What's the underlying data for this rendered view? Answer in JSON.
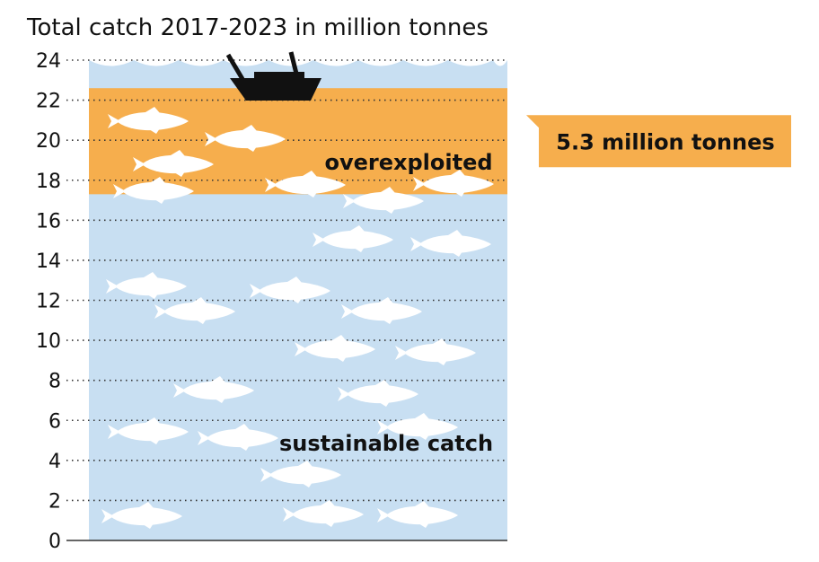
{
  "chart_data": {
    "type": "bar",
    "title": "Total catch 2017-2023 in million tonnes",
    "xlabel": "",
    "ylabel": "",
    "ylim": [
      0,
      24
    ],
    "yticks": [
      0,
      2,
      4,
      6,
      8,
      10,
      12,
      14,
      16,
      18,
      20,
      22,
      24
    ],
    "grid": true,
    "stacked": true,
    "categories": [
      ""
    ],
    "segments": [
      {
        "name": "sustainable catch",
        "value": 17.3,
        "color": "#c8dff2"
      },
      {
        "name": "overexploited",
        "value": 5.3,
        "color": "#f6ae4d"
      }
    ],
    "total": 22.6,
    "annotations": [
      {
        "text": "5.3 million tonnes",
        "refers_to": "overexploited",
        "color": "#f6ae4d"
      }
    ],
    "icons": [
      "fishing-boat-icon",
      "fish-icon"
    ]
  }
}
